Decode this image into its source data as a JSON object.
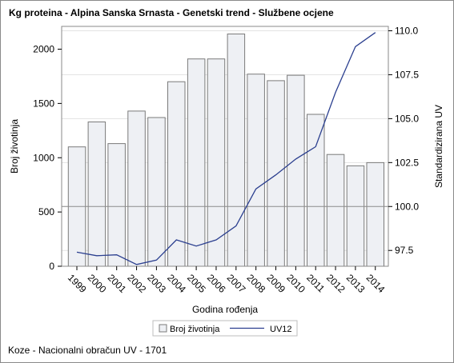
{
  "chart_data": {
    "type": "bar",
    "title": "Kg proteina - Alpina Sanska Srnasta - Genetski trend - Službene ocjene",
    "footnote": "Koze - Nacionalni obračun UV - 1701",
    "xlabel": "Godina rođenja",
    "ylabel": "Broj životinja",
    "y2label": "Standardizirana UV",
    "categories": [
      "1999",
      "2000",
      "2001",
      "2002",
      "2003",
      "2004",
      "2005",
      "2006",
      "2007",
      "2008",
      "2009",
      "2010",
      "2011",
      "2012",
      "2013",
      "2014"
    ],
    "series": [
      {
        "name": "Broj životinja",
        "type": "bar",
        "axis": "left",
        "color": "#eef0f4",
        "edge_color": "#7a7a7a",
        "values": [
          1100,
          1330,
          1130,
          1430,
          1370,
          1700,
          1910,
          1910,
          2140,
          1770,
          1710,
          1760,
          1400,
          1030,
          925,
          955
        ]
      },
      {
        "name": "UV12",
        "type": "line",
        "axis": "right",
        "color": "#2b3f8f",
        "values": [
          97.4,
          97.2,
          97.25,
          96.7,
          96.95,
          98.1,
          97.75,
          98.1,
          98.9,
          101.0,
          101.8,
          102.7,
          103.4,
          106.5,
          109.1,
          109.9
        ]
      }
    ],
    "y_ticks": [
      0,
      500,
      1000,
      1500,
      2000
    ],
    "y2_ticks": [
      97.5,
      100.0,
      102.5,
      105.0,
      107.5,
      110.0
    ],
    "ylim": [
      0,
      2210
    ],
    "y2lim": [
      96.6,
      110.25
    ],
    "reference_line": 100.0,
    "grid": true,
    "legend_position": "bottom"
  }
}
